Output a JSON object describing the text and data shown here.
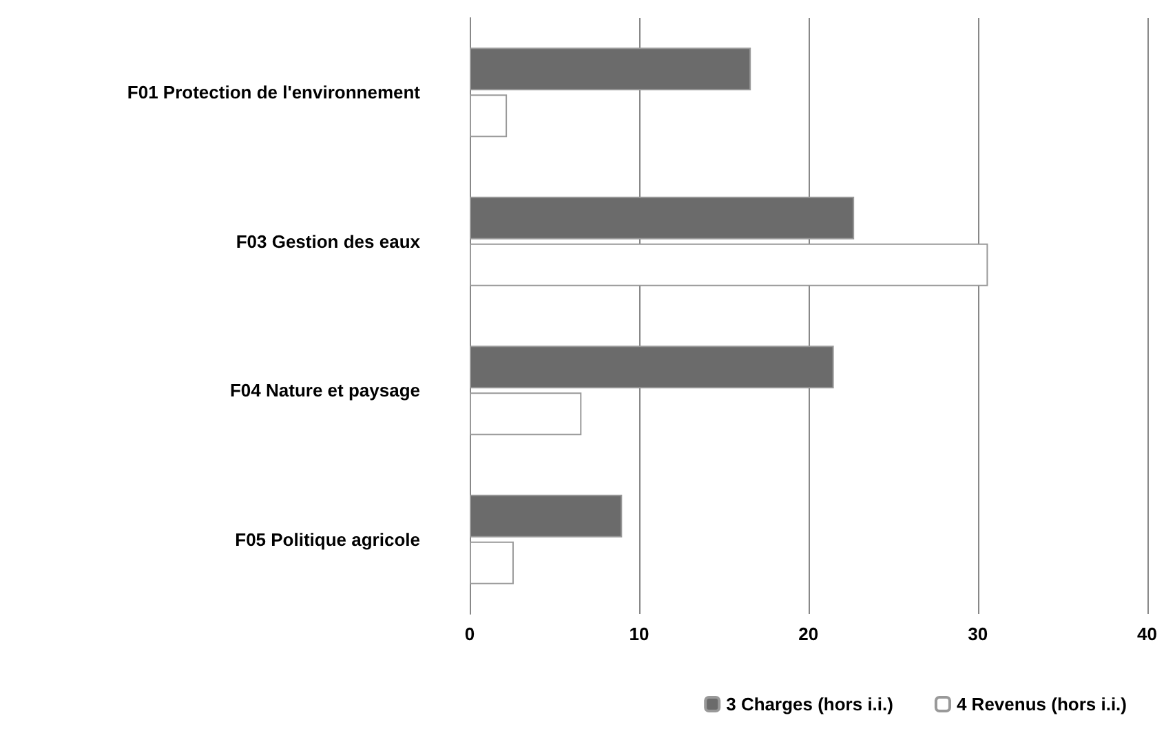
{
  "chart_data": {
    "type": "bar",
    "orientation": "horizontal",
    "categories": [
      "F01 Protection de l'environnement",
      "F03 Gestion des eaux",
      "F04 Nature et paysage",
      "F05 Politique agricole"
    ],
    "series": [
      {
        "name": "3 Charges (hors i.i.)",
        "color": "#6b6b6b",
        "values": [
          16.6,
          22.7,
          21.5,
          9.0
        ]
      },
      {
        "name": "4 Revenus (hors i.i.)",
        "color": "#ffffff",
        "values": [
          2.2,
          30.6,
          6.6,
          2.6
        ]
      }
    ],
    "xlim": [
      0,
      40
    ],
    "xticks": [
      0,
      10,
      20,
      30,
      40
    ],
    "grid": "x",
    "legend": "bottom right"
  }
}
